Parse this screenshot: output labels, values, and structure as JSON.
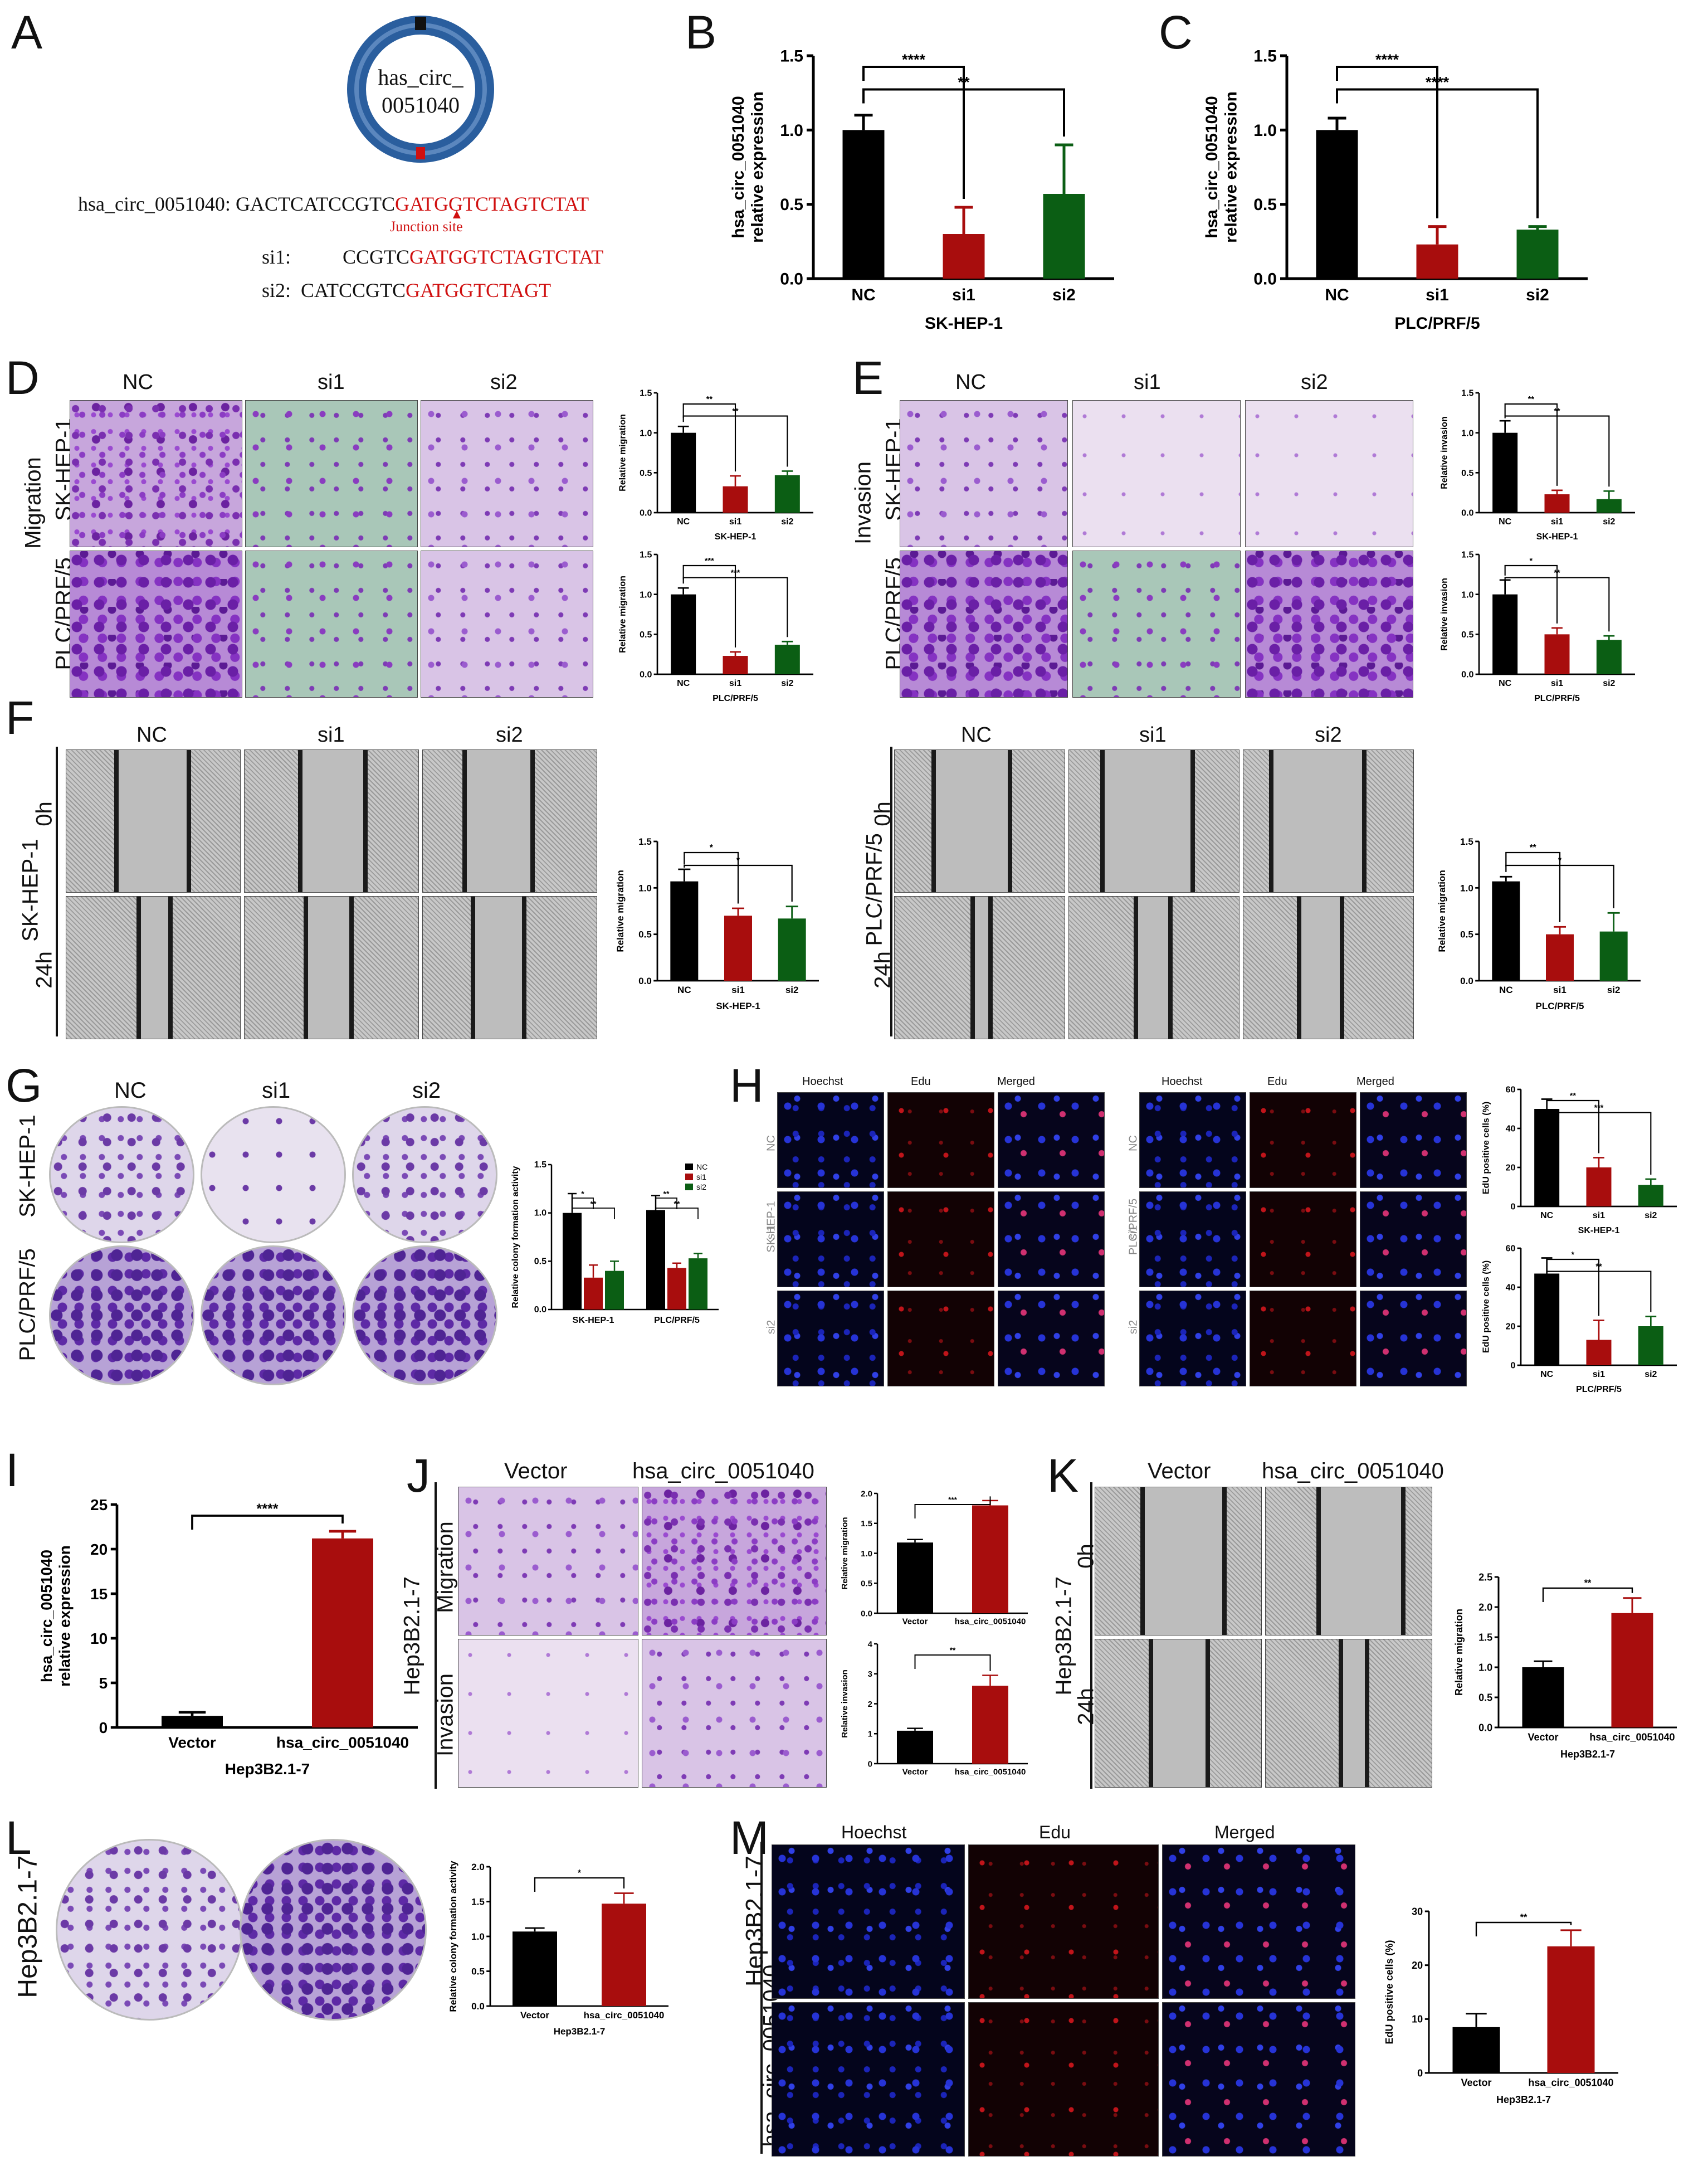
{
  "panel_letters": {
    "A": "A",
    "B": "B",
    "C": "C",
    "D": "D",
    "E": "E",
    "F": "F",
    "G": "G",
    "H": "H",
    "I": "I",
    "J": "J",
    "K": "K",
    "L": "L",
    "M": "M"
  },
  "panelA": {
    "circle_label_line1": "has_circ_",
    "circle_label_line2": "0051040",
    "seq_prefix": "hsa_circ_0051040: GACTCATCCGTC",
    "seq_red": "GATGGTCTAGTCTAT",
    "junction": "Junction site",
    "si1_label": "si1:",
    "si1_black": "CCGTC",
    "si1_red": "GATGGTCTAGTCTAT",
    "si2_label": "si2:",
    "si2_black": "CATCCGTC",
    "si2_red": "GATGGTCTAGT"
  },
  "labels": {
    "nc": "NC",
    "si1": "si1",
    "si2": "si2",
    "migration": "Migration",
    "invasion": "Invasion",
    "skhep1": "SK-HEP-1",
    "plc": "PLC/PRF/5",
    "h0": "0h",
    "h24": "24h",
    "hoechst": "Hoechst",
    "edu": "Edu",
    "merged": "Merged",
    "vector": "Vector",
    "circ": "hsa_circ_0051040",
    "hep3b": "Hep3B2.1-7",
    "hsa_circ_short": "hsa_circ_0051040"
  },
  "colors": {
    "black": "#000000",
    "red": "#a80d0d",
    "green": "#0b5e14"
  },
  "chart_data": [
    {
      "id": "B",
      "type": "bar",
      "categories": [
        "NC",
        "si1",
        "si2"
      ],
      "values": [
        1.0,
        0.3,
        0.57
      ],
      "errors": [
        0.1,
        0.18,
        0.33
      ],
      "ylim": [
        0,
        1.5
      ],
      "yticks": [
        "0.0",
        "0.5",
        "1.0",
        "1.5"
      ],
      "ylabel": "hsa_circ_0051040\nrelative expression",
      "xlabel": "SK-HEP-1",
      "sig": [
        {
          "a": 0,
          "b": 1,
          "t": "****"
        },
        {
          "a": 0,
          "b": 2,
          "t": "**"
        }
      ]
    },
    {
      "id": "C",
      "type": "bar",
      "categories": [
        "NC",
        "si1",
        "si2"
      ],
      "values": [
        1.0,
        0.23,
        0.33
      ],
      "errors": [
        0.08,
        0.12,
        0.02
      ],
      "ylim": [
        0,
        1.5
      ],
      "yticks": [
        "0.0",
        "0.5",
        "1.0",
        "1.5"
      ],
      "ylabel": "hsa_circ_0051040\nrelative expression",
      "xlabel": "PLC/PRF/5",
      "sig": [
        {
          "a": 0,
          "b": 1,
          "t": "****"
        },
        {
          "a": 0,
          "b": 2,
          "t": "****"
        }
      ]
    },
    {
      "id": "D1",
      "type": "bar",
      "categories": [
        "NC",
        "si1",
        "si2"
      ],
      "values": [
        1.0,
        0.33,
        0.47
      ],
      "errors": [
        0.08,
        0.13,
        0.05
      ],
      "ylim": [
        0,
        1.5
      ],
      "yticks": [
        "0.0",
        "0.5",
        "1.0",
        "1.5"
      ],
      "ylabel": "Relative migration",
      "xlabel": "SK-HEP-1",
      "sig": [
        {
          "a": 0,
          "b": 1,
          "t": "**"
        },
        {
          "a": 0,
          "b": 2,
          "t": "**"
        }
      ]
    },
    {
      "id": "D2",
      "type": "bar",
      "categories": [
        "NC",
        "si1",
        "si2"
      ],
      "values": [
        1.0,
        0.23,
        0.37
      ],
      "errors": [
        0.08,
        0.05,
        0.04
      ],
      "ylim": [
        0,
        1.5
      ],
      "yticks": [
        "0.0",
        "0.5",
        "1.0",
        "1.5"
      ],
      "ylabel": "Relative migration",
      "xlabel": "PLC/PRF/5",
      "sig": [
        {
          "a": 0,
          "b": 1,
          "t": "***"
        },
        {
          "a": 0,
          "b": 2,
          "t": "***"
        }
      ]
    },
    {
      "id": "E1",
      "type": "bar",
      "categories": [
        "NC",
        "si1",
        "si2"
      ],
      "values": [
        1.0,
        0.23,
        0.17
      ],
      "errors": [
        0.15,
        0.05,
        0.1
      ],
      "ylim": [
        0,
        1.5
      ],
      "yticks": [
        "0.0",
        "0.5",
        "1.0",
        "1.5"
      ],
      "ylabel": "Relative invasion",
      "xlabel": "SK-HEP-1",
      "sig": [
        {
          "a": 0,
          "b": 1,
          "t": "**"
        },
        {
          "a": 0,
          "b": 2,
          "t": "**"
        }
      ]
    },
    {
      "id": "E2",
      "type": "bar",
      "categories": [
        "NC",
        "si1",
        "si2"
      ],
      "values": [
        1.0,
        0.5,
        0.43
      ],
      "errors": [
        0.18,
        0.08,
        0.05
      ],
      "ylim": [
        0,
        1.5
      ],
      "yticks": [
        "0.0",
        "0.5",
        "1.0",
        "1.5"
      ],
      "ylabel": "Relative invasion",
      "xlabel": "PLC/PRF/5",
      "sig": [
        {
          "a": 0,
          "b": 1,
          "t": "*"
        },
        {
          "a": 0,
          "b": 2,
          "t": "**"
        }
      ]
    },
    {
      "id": "F1",
      "type": "bar",
      "categories": [
        "NC",
        "si1",
        "si2"
      ],
      "values": [
        1.07,
        0.7,
        0.67
      ],
      "errors": [
        0.13,
        0.08,
        0.13
      ],
      "ylim": [
        0,
        1.5
      ],
      "yticks": [
        "0.0",
        "0.5",
        "1.0",
        "1.5"
      ],
      "ylabel": "Relative migration",
      "xlabel": "SK-HEP-1",
      "sig": [
        {
          "a": 0,
          "b": 1,
          "t": "*"
        },
        {
          "a": 0,
          "b": 2,
          "t": "*"
        }
      ]
    },
    {
      "id": "F2",
      "type": "bar",
      "categories": [
        "NC",
        "si1",
        "si2"
      ],
      "values": [
        1.07,
        0.5,
        0.53
      ],
      "errors": [
        0.05,
        0.08,
        0.2
      ],
      "ylim": [
        0,
        1.5
      ],
      "yticks": [
        "0.0",
        "0.5",
        "1.0",
        "1.5"
      ],
      "ylabel": "Relative migration",
      "xlabel": "PLC/PRF/5",
      "sig": [
        {
          "a": 0,
          "b": 1,
          "t": "**"
        },
        {
          "a": 0,
          "b": 2,
          "t": "*"
        }
      ]
    },
    {
      "id": "G",
      "type": "bar",
      "groups": [
        "SK-HEP-1",
        "PLC/PRF/5"
      ],
      "series": [
        {
          "name": "NC",
          "values": [
            1.0,
            1.03
          ],
          "errors": [
            0.2,
            0.15
          ]
        },
        {
          "name": "si1",
          "values": [
            0.33,
            0.43
          ],
          "errors": [
            0.13,
            0.05
          ]
        },
        {
          "name": "si2",
          "values": [
            0.4,
            0.53
          ],
          "errors": [
            0.1,
            0.05
          ]
        }
      ],
      "ylim": [
        0,
        1.5
      ],
      "yticks": [
        "0.0",
        "0.5",
        "1.0",
        "1.5"
      ],
      "ylabel": "Relative colony formation activity",
      "legend": "top-right",
      "sig_groups": [
        {
          "g": 0,
          "a": 0,
          "b": 1,
          "t": "*"
        },
        {
          "g": 0,
          "a": 0,
          "b": 2,
          "t": "**"
        },
        {
          "g": 1,
          "a": 0,
          "b": 1,
          "t": "**"
        },
        {
          "g": 1,
          "a": 0,
          "b": 2,
          "t": "**"
        }
      ]
    },
    {
      "id": "H1",
      "type": "bar",
      "categories": [
        "NC",
        "si1",
        "si2"
      ],
      "values": [
        50,
        20,
        11
      ],
      "errors": [
        5,
        5,
        3
      ],
      "ylim": [
        0,
        60
      ],
      "yticks": [
        "0",
        "20",
        "40",
        "60"
      ],
      "ylabel": "EdU positive cells (%)",
      "xlabel": "SK-HEP-1",
      "sig": [
        {
          "a": 0,
          "b": 1,
          "t": "**"
        },
        {
          "a": 0,
          "b": 2,
          "t": "***"
        }
      ]
    },
    {
      "id": "H2",
      "type": "bar",
      "categories": [
        "NC",
        "si1",
        "si2"
      ],
      "values": [
        47,
        13,
        20
      ],
      "errors": [
        8,
        10,
        5
      ],
      "ylim": [
        0,
        60
      ],
      "yticks": [
        "0",
        "20",
        "40",
        "60"
      ],
      "ylabel": "EdU positive cells (%)",
      "xlabel": "PLC/PRF/5",
      "sig": [
        {
          "a": 0,
          "b": 1,
          "t": "*"
        },
        {
          "a": 0,
          "b": 2,
          "t": "**"
        }
      ]
    },
    {
      "id": "I",
      "type": "bar",
      "categories": [
        "Vector",
        "hsa_circ_0051040"
      ],
      "values": [
        1.3,
        21.2
      ],
      "errors": [
        0.4,
        0.8
      ],
      "ylim": [
        0,
        25
      ],
      "yticks": [
        "0",
        "5",
        "10",
        "15",
        "20",
        "25"
      ],
      "ylabel": "hsa_circ_0051040\nrelative expression",
      "xlabel": "Hep3B2.1-7",
      "sig": [
        {
          "a": 0,
          "b": 1,
          "t": "****"
        }
      ]
    },
    {
      "id": "J1",
      "type": "bar",
      "categories": [
        "Vector",
        "hsa_circ_0051040"
      ],
      "values": [
        1.18,
        1.8
      ],
      "errors": [
        0.05,
        0.08
      ],
      "ylim": [
        0,
        2.0
      ],
      "yticks": [
        "0.0",
        "0.5",
        "1.0",
        "1.5",
        "2.0"
      ],
      "ylabel": "Relative migration",
      "xlabel": "",
      "sig": [
        {
          "a": 0,
          "b": 1,
          "t": "***"
        }
      ]
    },
    {
      "id": "J2",
      "type": "bar",
      "categories": [
        "Vector",
        "hsa_circ_0051040"
      ],
      "values": [
        1.1,
        2.6
      ],
      "errors": [
        0.08,
        0.35
      ],
      "ylim": [
        0,
        4
      ],
      "yticks": [
        "0",
        "1",
        "2",
        "3",
        "4"
      ],
      "ylabel": "Relative invasion",
      "xlabel": "",
      "sig": [
        {
          "a": 0,
          "b": 1,
          "t": "**"
        }
      ]
    },
    {
      "id": "K",
      "type": "bar",
      "categories": [
        "Vector",
        "hsa_circ_0051040"
      ],
      "values": [
        1.0,
        1.9
      ],
      "errors": [
        0.1,
        0.25
      ],
      "ylim": [
        0,
        2.5
      ],
      "yticks": [
        "0.0",
        "0.5",
        "1.0",
        "1.5",
        "2.0",
        "2.5"
      ],
      "ylabel": "Relative migration",
      "xlabel": "Hep3B2.1-7",
      "sig": [
        {
          "a": 0,
          "b": 1,
          "t": "**"
        }
      ]
    },
    {
      "id": "L",
      "type": "bar",
      "categories": [
        "Vector",
        "hsa_circ_0051040"
      ],
      "values": [
        1.07,
        1.47
      ],
      "errors": [
        0.05,
        0.15
      ],
      "ylim": [
        0,
        2.0
      ],
      "yticks": [
        "0.0",
        "0.5",
        "1.0",
        "1.5",
        "2.0"
      ],
      "ylabel": "Relative colony formation activity",
      "xlabel": "Hep3B2.1-7",
      "sig": [
        {
          "a": 0,
          "b": 1,
          "t": "*"
        }
      ]
    },
    {
      "id": "M",
      "type": "bar",
      "categories": [
        "Vector",
        "hsa_circ_0051040"
      ],
      "values": [
        8.5,
        23.5
      ],
      "errors": [
        2.5,
        3
      ],
      "ylim": [
        0,
        30
      ],
      "yticks": [
        "0",
        "10",
        "20",
        "30"
      ],
      "ylabel": "EdU positive cells (%)",
      "xlabel": "Hep3B2.1-7",
      "sig": [
        {
          "a": 0,
          "b": 1,
          "t": "**"
        }
      ]
    }
  ]
}
